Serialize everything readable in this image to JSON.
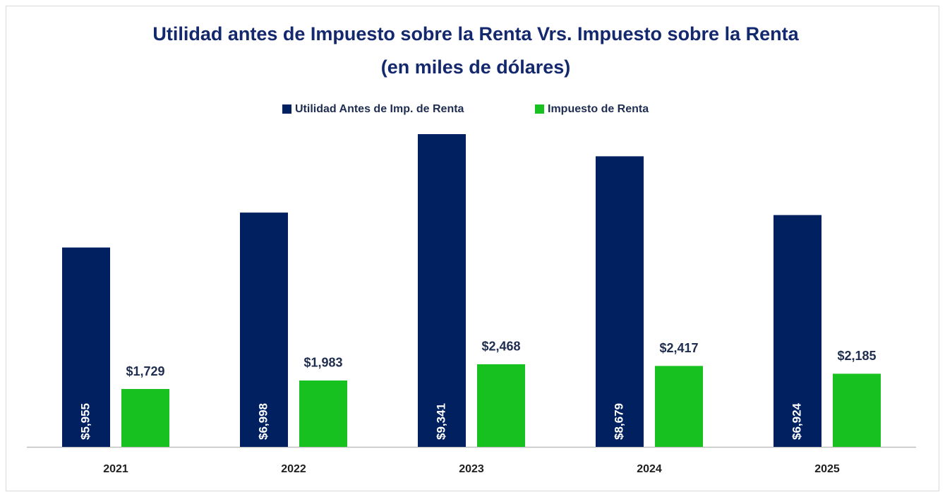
{
  "chart_data": {
    "type": "bar",
    "title": "Utilidad antes de Impuesto sobre la Renta Vrs. Impuesto sobre la Renta",
    "subtitle": "(en miles de dólares)",
    "categories": [
      "2021",
      "2022",
      "2023",
      "2024",
      "2025"
    ],
    "series": [
      {
        "name": "Utilidad Antes de Imp. de Renta",
        "color": "#002060",
        "values": [
          5955,
          6998,
          9341,
          8679,
          6924
        ],
        "value_labels": [
          "$5,955",
          "$6,998",
          "$9,341",
          "$8,679",
          "$6,924"
        ]
      },
      {
        "name": "Impuesto de Renta",
        "color": "#17c11f",
        "values": [
          1729,
          1983,
          2468,
          2417,
          2185
        ],
        "value_labels": [
          "$1,729",
          "$1,983",
          "$2,468",
          "$2,417",
          "$2,185"
        ]
      }
    ],
    "legend": "top"
  }
}
